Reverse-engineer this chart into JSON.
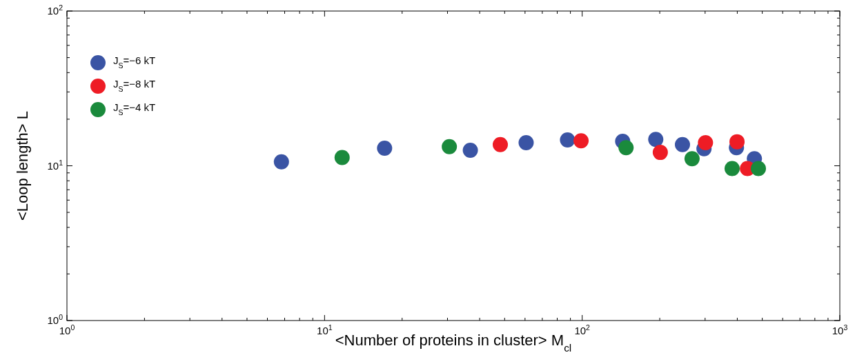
{
  "chart_data": {
    "type": "scatter",
    "xlabel": "<Number of proteins in cluster> M$_{cl}$",
    "ylabel": "<Loop length> L",
    "log": "xy",
    "xlim": [
      1,
      1000
    ],
    "ylim": [
      1,
      100
    ],
    "xticks": [
      {
        "value": 1,
        "label": "10$^{0}$"
      },
      {
        "value": 10,
        "label": "10$^{1}$"
      },
      {
        "value": 100,
        "label": "10$^{2}$"
      },
      {
        "value": 1000,
        "label": "10$^{3}$"
      }
    ],
    "yticks": [
      {
        "value": 1,
        "label": "10$^{0}$"
      },
      {
        "value": 10,
        "label": "10$^{1}$"
      },
      {
        "value": 100,
        "label": "10$^{2}$"
      }
    ],
    "legend": "top left",
    "marker": "circle",
    "grid": false,
    "series": [
      {
        "name": "J$_{S}$=−6 kT",
        "color": "#3a54a4",
        "x": [
          6.8,
          17.1,
          36.8,
          60.6,
          87.7,
          143.6,
          193,
          245,
          297,
          397,
          466
        ],
        "values": [
          10.6,
          13.0,
          12.6,
          14.1,
          14.7,
          14.4,
          14.8,
          13.7,
          12.9,
          13.1,
          11.1
        ]
      },
      {
        "name": "J$_{S}$=−8 kT",
        "color": "#ee1c25",
        "x": [
          48.1,
          99,
          201,
          301,
          399,
          438
        ],
        "values": [
          13.7,
          14.5,
          12.2,
          14.1,
          14.3,
          9.6
        ]
      },
      {
        "name": "J$_{S}$=−4 kT",
        "color": "#1a8a3c",
        "x": [
          11.7,
          30.5,
          148,
          267,
          382,
          483
        ],
        "values": [
          11.3,
          13.3,
          13.1,
          11.1,
          9.6,
          9.6
        ]
      }
    ]
  }
}
